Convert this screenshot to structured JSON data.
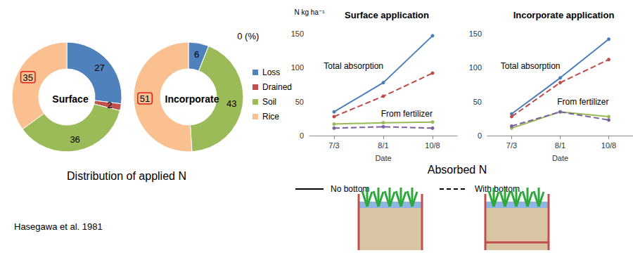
{
  "chart_data": [
    {
      "type": "pie",
      "title": "Distribution of applied N",
      "categories": [
        "Loss",
        "Drained",
        "Soil",
        "Rice"
      ],
      "colors": [
        "#4f81bd",
        "#c0504d",
        "#9bbb59",
        "#fac090"
      ],
      "legend": "right",
      "data_labels": true,
      "pies": [
        {
          "title": "Surface",
          "values": [
            27,
            2,
            36,
            35
          ]
        },
        {
          "title": "Incorporate",
          "values": [
            6,
            0,
            43,
            51
          ],
          "value_labels": [
            "6",
            "0 (%)",
            "43",
            "51"
          ]
        }
      ]
    },
    {
      "type": "line",
      "title": "Surface application",
      "ylabel": "N kg ha⁻¹",
      "xlabel": "Date",
      "categories": [
        "7/3",
        "8/1",
        "10/8"
      ],
      "ylim": [
        0,
        150
      ],
      "yticks": [
        0,
        50,
        100,
        150
      ],
      "grid": false,
      "marker": "circle",
      "series": [
        {
          "color": "#4a7ebb",
          "line_style": "solid",
          "values": [
            35,
            78,
            147
          ]
        },
        {
          "color": "#be4b48",
          "line_style": "dashed",
          "values": [
            28,
            58,
            92
          ]
        },
        {
          "color": "#98b954",
          "line_style": "solid",
          "values": [
            17,
            19,
            20
          ]
        },
        {
          "color": "#7d60a0",
          "line_style": "dashed",
          "values": [
            11,
            13,
            11
          ]
        }
      ],
      "annotations": [
        {
          "text": "Total absorption",
          "x": "8/1",
          "y": 102
        },
        {
          "text": "From fertilizer",
          "x": "10/8",
          "y": 32
        }
      ]
    },
    {
      "type": "line",
      "title": "Incorporate application",
      "xlabel": "Date",
      "categories": [
        "7/3",
        "8/1",
        "10/8"
      ],
      "ylim": [
        0,
        150
      ],
      "yticks": [
        0,
        50,
        100,
        150
      ],
      "grid": false,
      "marker": "circle",
      "series": [
        {
          "color": "#4a7ebb",
          "line_style": "solid",
          "values": [
            32,
            85,
            142
          ]
        },
        {
          "color": "#be4b48",
          "line_style": "dashed",
          "values": [
            28,
            78,
            112
          ]
        },
        {
          "color": "#98b954",
          "line_style": "solid",
          "values": [
            11,
            35,
            28
          ]
        },
        {
          "color": "#7d60a0",
          "line_style": "dashed",
          "values": [
            14,
            35,
            23
          ]
        }
      ],
      "annotations": [
        {
          "text": "Total absorption",
          "x": "8/1",
          "y": 102
        },
        {
          "text": "From fertilizer",
          "x": "10/8",
          "y": 50
        }
      ]
    }
  ],
  "caption": "Absorbed N",
  "line_style_key": [
    {
      "label": "No bottom",
      "line_style": "solid"
    },
    {
      "label": "With bottom",
      "line_style": "dashed"
    }
  ],
  "source": "Hasegawa et al. 1981"
}
